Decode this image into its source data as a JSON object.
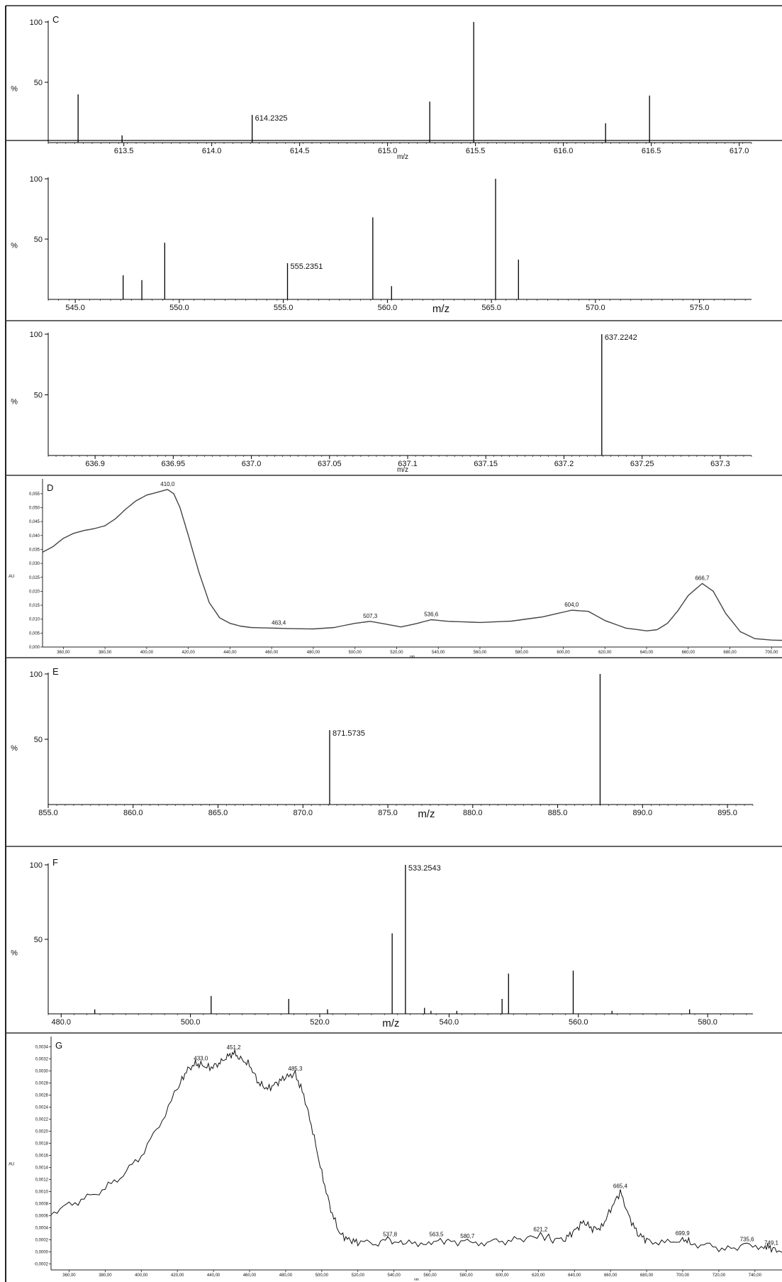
{
  "chart_data": [
    {
      "type": "stem",
      "panel_label": "C",
      "xlabel": "m/z",
      "ylabel": "%",
      "xlim": [
        613.07,
        617.07
      ],
      "ylim": [
        0,
        100
      ],
      "x_ticks": [
        613.5,
        614.0,
        614.5,
        615.0,
        615.5,
        616.0,
        616.5,
        617.0
      ],
      "x_tick_labels": [
        "613.5",
        "614.0",
        "614.5",
        "615.0",
        "615.5",
        "616.0",
        "616.5",
        "617.0"
      ],
      "y_ticks": [
        50,
        100
      ],
      "y_tick_labels": [
        "50",
        "100"
      ],
      "peaks": [
        {
          "x": 613.24,
          "y": 40
        },
        {
          "x": 613.49,
          "y": 6
        },
        {
          "x": 614.23,
          "y": 23,
          "label": "614.2325"
        },
        {
          "x": 615.24,
          "y": 34
        },
        {
          "x": 615.49,
          "y": 100
        },
        {
          "x": 616.24,
          "y": 16
        },
        {
          "x": 616.49,
          "y": 39
        }
      ]
    },
    {
      "type": "stem",
      "panel_label": "",
      "xlabel": "m/z",
      "ylabel": "%",
      "xlim": [
        543.7,
        577.5
      ],
      "ylim": [
        0,
        100
      ],
      "x_ticks": [
        545,
        550,
        555,
        560,
        565,
        570,
        575
      ],
      "x_tick_labels": [
        "545.0",
        "550.0",
        "555.0",
        "560.0",
        "565.0",
        "570.0",
        "575.0"
      ],
      "y_ticks": [
        50,
        100
      ],
      "y_tick_labels": [
        "50",
        "100"
      ],
      "peaks": [
        {
          "x": 547.3,
          "y": 20
        },
        {
          "x": 548.2,
          "y": 16
        },
        {
          "x": 549.3,
          "y": 47
        },
        {
          "x": 555.2,
          "y": 30,
          "label": "555.2351"
        },
        {
          "x": 559.3,
          "y": 68
        },
        {
          "x": 560.2,
          "y": 11
        },
        {
          "x": 565.2,
          "y": 100
        },
        {
          "x": 566.3,
          "y": 33
        }
      ]
    },
    {
      "type": "stem",
      "panel_label": "",
      "xlabel": "m/z",
      "ylabel": "%",
      "xlim": [
        636.87,
        637.32
      ],
      "ylim": [
        0,
        100
      ],
      "x_ticks": [
        636.9,
        636.95,
        637.0,
        637.05,
        637.1,
        637.15,
        637.2,
        637.25,
        637.3
      ],
      "x_tick_labels": [
        "636.9",
        "636.95",
        "637.0",
        "637.05",
        "637.1",
        "637.15",
        "637.2",
        "637.25",
        "637.3"
      ],
      "y_ticks": [
        50,
        100
      ],
      "y_tick_labels": [
        "50",
        "100"
      ],
      "peaks": [
        {
          "x": 637.2242,
          "y": 100,
          "label": "637.2242"
        }
      ]
    },
    {
      "type": "line",
      "panel_label": "D",
      "xlabel": "nm",
      "ylabel": "AU",
      "xlim": [
        350,
        705
      ],
      "ylim": [
        0,
        0.057
      ],
      "x_ticks": [
        360,
        380,
        400,
        420,
        440,
        460,
        480,
        500,
        520,
        540,
        560,
        580,
        600,
        620,
        640,
        660,
        680,
        700
      ],
      "x_tick_labels": [
        "360,00",
        "380,00",
        "400,00",
        "420,00",
        "440,00",
        "460,00",
        "480,00",
        "500,00",
        "520,00",
        "540,00",
        "560,00",
        "580,00",
        "600,00",
        "620,00",
        "640,00",
        "660,00",
        "680,00",
        "700,00"
      ],
      "y_ticks": [
        0.0,
        0.005,
        0.01,
        0.015,
        0.02,
        0.025,
        0.03,
        0.035,
        0.04,
        0.045,
        0.05,
        0.055
      ],
      "y_tick_labels": [
        "0,000",
        "0,005",
        "0,010",
        "0,015",
        "0,020",
        "0,025",
        "0,030",
        "0,035",
        "0,040",
        "0,045",
        "0,050",
        "0,055"
      ],
      "series": [
        {
          "x": [
            350,
            355,
            360,
            365,
            370,
            375,
            380,
            385,
            390,
            395,
            400,
            405,
            410,
            413,
            416,
            420,
            425,
            430,
            435,
            440,
            445,
            450,
            460,
            470,
            480,
            490,
            500,
            507.3,
            515,
            522,
            530,
            536.6,
            545,
            560,
            575,
            590,
            604,
            612,
            620,
            630,
            640,
            645,
            650,
            655,
            660,
            666.7,
            672,
            678,
            685,
            692,
            700,
            705
          ],
          "y": [
            0.034,
            0.036,
            0.039,
            0.0408,
            0.0418,
            0.0425,
            0.0435,
            0.046,
            0.0495,
            0.0525,
            0.0545,
            0.0555,
            0.0565,
            0.055,
            0.05,
            0.04,
            0.027,
            0.016,
            0.0105,
            0.0085,
            0.0075,
            0.007,
            0.0068,
            0.0066,
            0.0065,
            0.007,
            0.0085,
            0.0092,
            0.0082,
            0.0072,
            0.0085,
            0.0098,
            0.0092,
            0.0088,
            0.0093,
            0.0108,
            0.0132,
            0.0128,
            0.0095,
            0.0068,
            0.0058,
            0.0062,
            0.0085,
            0.013,
            0.0185,
            0.0228,
            0.02,
            0.012,
            0.0055,
            0.003,
            0.0025,
            0.0024
          ]
        }
      ],
      "annotations": [
        {
          "x": 410.0,
          "y": 0.0565,
          "text": "410,0"
        },
        {
          "x": 463.4,
          "y": 0.0068,
          "text": "463,4"
        },
        {
          "x": 507.3,
          "y": 0.0092,
          "text": "507,3"
        },
        {
          "x": 536.6,
          "y": 0.0098,
          "text": "536,6"
        },
        {
          "x": 604.0,
          "y": 0.0132,
          "text": "604,0"
        },
        {
          "x": 666.7,
          "y": 0.0228,
          "text": "666,7"
        }
      ]
    },
    {
      "type": "stem",
      "panel_label": "E",
      "xlabel": "m/z",
      "ylabel": "%",
      "xlim": [
        855.0,
        896.5
      ],
      "ylim": [
        0,
        100
      ],
      "x_ticks": [
        855,
        860,
        865,
        870,
        875,
        880,
        885,
        890,
        895
      ],
      "x_tick_labels": [
        "855.0",
        "860.0",
        "865.0",
        "870.0",
        "875.0",
        "880.0",
        "885.0",
        "890.0",
        "895.0"
      ],
      "y_ticks": [
        50,
        100
      ],
      "y_tick_labels": [
        "50",
        "100"
      ],
      "peaks": [
        {
          "x": 871.5735,
          "y": 57,
          "label": "871.5735"
        },
        {
          "x": 887.5,
          "y": 100
        }
      ]
    },
    {
      "type": "stem",
      "panel_label": "F",
      "xlabel": "m/z",
      "ylabel": "%",
      "xlim": [
        478.0,
        587.0
      ],
      "ylim": [
        0,
        100
      ],
      "x_ticks": [
        480,
        500,
        520,
        540,
        560,
        580
      ],
      "x_tick_labels": [
        "480.0",
        "500.0",
        "520.0",
        "540.0",
        "560.0",
        "580.0"
      ],
      "y_ticks": [
        50,
        100
      ],
      "y_tick_labels": [
        "50",
        "100"
      ],
      "peaks": [
        {
          "x": 485.2,
          "y": 3
        },
        {
          "x": 503.2,
          "y": 12
        },
        {
          "x": 515.2,
          "y": 10
        },
        {
          "x": 521.2,
          "y": 3
        },
        {
          "x": 531.2,
          "y": 54
        },
        {
          "x": 533.2543,
          "y": 100,
          "label": "533.2543"
        },
        {
          "x": 536.2,
          "y": 4
        },
        {
          "x": 537.2,
          "y": 2
        },
        {
          "x": 541.2,
          "y": 2
        },
        {
          "x": 548.2,
          "y": 10
        },
        {
          "x": 549.2,
          "y": 27
        },
        {
          "x": 559.2,
          "y": 29
        },
        {
          "x": 565.2,
          "y": 2
        },
        {
          "x": 577.2,
          "y": 3
        }
      ]
    },
    {
      "type": "line",
      "panel_label": "G",
      "xlabel": "nm",
      "ylabel": "AU",
      "xlim": [
        350,
        755
      ],
      "ylim": [
        -0.0003,
        0.0035
      ],
      "x_ticks": [
        360,
        380,
        400,
        420,
        440,
        460,
        480,
        500,
        520,
        540,
        560,
        580,
        600,
        620,
        640,
        660,
        680,
        700,
        720,
        740
      ],
      "x_tick_labels": [
        "360,00",
        "380,00",
        "400,00",
        "420,00",
        "440,00",
        "460,00",
        "480,00",
        "500,00",
        "520,00",
        "540,00",
        "560,00",
        "580,00",
        "600,00",
        "620,00",
        "640,00",
        "660,00",
        "680,00",
        "700,00",
        "720,00",
        "740,00"
      ],
      "y_ticks": [
        -0.0002,
        0.0,
        0.0002,
        0.0004,
        0.0006,
        0.0008,
        0.001,
        0.0012,
        0.0014,
        0.0016,
        0.0018,
        0.002,
        0.0022,
        0.0024,
        0.0026,
        0.0028,
        0.003,
        0.0032,
        0.0034
      ],
      "y_tick_labels": [
        "-0,0002",
        "0,0000",
        "0,0002",
        "0,0004",
        "0,0006",
        "0,0008",
        "0,0010",
        "0,0012",
        "0,0014",
        "0,0016",
        "0,0018",
        "0,0020",
        "0,0022",
        "0,0024",
        "0,0026",
        "0,0028",
        "0,0030",
        "0,0032",
        "0,0034"
      ],
      "series": [
        {
          "x": [
            350,
            360,
            370,
            380,
            390,
            400,
            410,
            420,
            425,
            430,
            433,
            438,
            443,
            447,
            451.2,
            455,
            460,
            465,
            470,
            475,
            480,
            485.3,
            490,
            495,
            500,
            505,
            510,
            515,
            520,
            530,
            537.8,
            545,
            555,
            563.5,
            570,
            580.7,
            590,
            600,
            610,
            621.2,
            628,
            635,
            640,
            645,
            650,
            655,
            660,
            665.4,
            670,
            675,
            680,
            690,
            699.9,
            705,
            715,
            725,
            735.6,
            745,
            749.1,
            755
          ],
          "y": [
            0.00065,
            0.00078,
            0.0009,
            0.00105,
            0.00128,
            0.0016,
            0.0021,
            0.0027,
            0.003,
            0.00312,
            0.0031,
            0.00305,
            0.00312,
            0.00322,
            0.0033,
            0.0032,
            0.0031,
            0.0028,
            0.0027,
            0.0028,
            0.0029,
            0.00295,
            0.0026,
            0.002,
            0.0013,
            0.0007,
            0.0003,
            0.0002,
            0.00016,
            0.00014,
            0.0002,
            0.00012,
            0.00016,
            0.0002,
            0.00016,
            0.00017,
            0.00016,
            0.00018,
            0.0002,
            0.00028,
            0.0002,
            0.00022,
            0.00035,
            0.0005,
            0.00038,
            0.0004,
            0.0007,
            0.001,
            0.0006,
            0.0003,
            0.0002,
            0.00014,
            0.00022,
            0.00014,
            0.0001,
            4e-05,
            0.00012,
            0.0001,
            6e-05,
            -1e-05
          ]
        }
      ],
      "annotations": [
        {
          "x": 433.0,
          "y": 0.00312,
          "text": "433,0"
        },
        {
          "x": 451.2,
          "y": 0.0033,
          "text": "451,2"
        },
        {
          "x": 485.3,
          "y": 0.00295,
          "text": "485,3"
        },
        {
          "x": 537.8,
          "y": 0.0002,
          "text": "537,8"
        },
        {
          "x": 563.5,
          "y": 0.0002,
          "text": "563,5"
        },
        {
          "x": 580.7,
          "y": 0.00017,
          "text": "580,7"
        },
        {
          "x": 621.2,
          "y": 0.00028,
          "text": "621,2"
        },
        {
          "x": 665.4,
          "y": 0.001,
          "text": "665,4"
        },
        {
          "x": 699.9,
          "y": 0.00022,
          "text": "699,9"
        },
        {
          "x": 735.6,
          "y": 0.00012,
          "text": "735,6"
        },
        {
          "x": 749.1,
          "y": 6e-05,
          "text": "749,1"
        }
      ]
    }
  ]
}
